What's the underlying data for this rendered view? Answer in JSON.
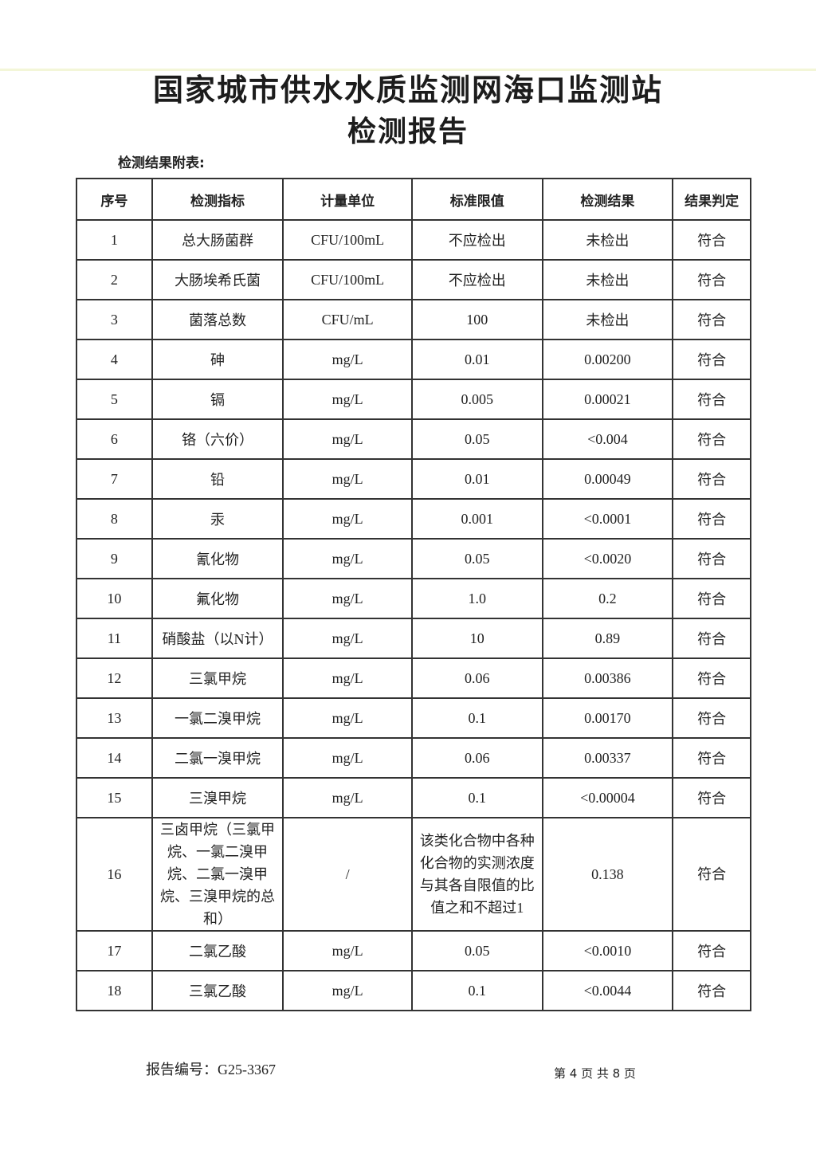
{
  "header": {
    "title": "国家城市供水水质监测网海口监测站",
    "subtitle": "检测报告",
    "table_caption": "检测结果附表:"
  },
  "table": {
    "columns": [
      "序号",
      "检测指标",
      "计量单位",
      "标准限值",
      "检测结果",
      "结果判定"
    ],
    "rows": [
      [
        "1",
        "总大肠菌群",
        "CFU/100mL",
        "不应检出",
        "未检出",
        "符合"
      ],
      [
        "2",
        "大肠埃希氏菌",
        "CFU/100mL",
        "不应检出",
        "未检出",
        "符合"
      ],
      [
        "3",
        "菌落总数",
        "CFU/mL",
        "100",
        "未检出",
        "符合"
      ],
      [
        "4",
        "砷",
        "mg/L",
        "0.01",
        "0.00200",
        "符合"
      ],
      [
        "5",
        "镉",
        "mg/L",
        "0.005",
        "0.00021",
        "符合"
      ],
      [
        "6",
        "铬（六价）",
        "mg/L",
        "0.05",
        "<0.004",
        "符合"
      ],
      [
        "7",
        "铅",
        "mg/L",
        "0.01",
        "0.00049",
        "符合"
      ],
      [
        "8",
        "汞",
        "mg/L",
        "0.001",
        "<0.0001",
        "符合"
      ],
      [
        "9",
        "氰化物",
        "mg/L",
        "0.05",
        "<0.0020",
        "符合"
      ],
      [
        "10",
        "氟化物",
        "mg/L",
        "1.0",
        "0.2",
        "符合"
      ],
      [
        "11",
        "硝酸盐（以N计）",
        "mg/L",
        "10",
        "0.89",
        "符合"
      ],
      [
        "12",
        "三氯甲烷",
        "mg/L",
        "0.06",
        "0.00386",
        "符合"
      ],
      [
        "13",
        "一氯二溴甲烷",
        "mg/L",
        "0.1",
        "0.00170",
        "符合"
      ],
      [
        "14",
        "二氯一溴甲烷",
        "mg/L",
        "0.06",
        "0.00337",
        "符合"
      ],
      [
        "15",
        "三溴甲烷",
        "mg/L",
        "0.1",
        "<0.00004",
        "符合"
      ],
      [
        "16",
        "三卤甲烷（三氯甲烷、一氯二溴甲烷、二氯一溴甲烷、三溴甲烷的总和）",
        "/",
        "该类化合物中各种化合物的实测浓度与其各自限值的比值之和不超过1",
        "0.138",
        "符合"
      ],
      [
        "17",
        "二氯乙酸",
        "mg/L",
        "0.05",
        "<0.0010",
        "符合"
      ],
      [
        "18",
        "三氯乙酸",
        "mg/L",
        "0.1",
        "<0.0044",
        "符合"
      ]
    ]
  },
  "footer": {
    "report_no": "报告编号：G25-3367",
    "page": "第 4 页  共 8 页"
  }
}
